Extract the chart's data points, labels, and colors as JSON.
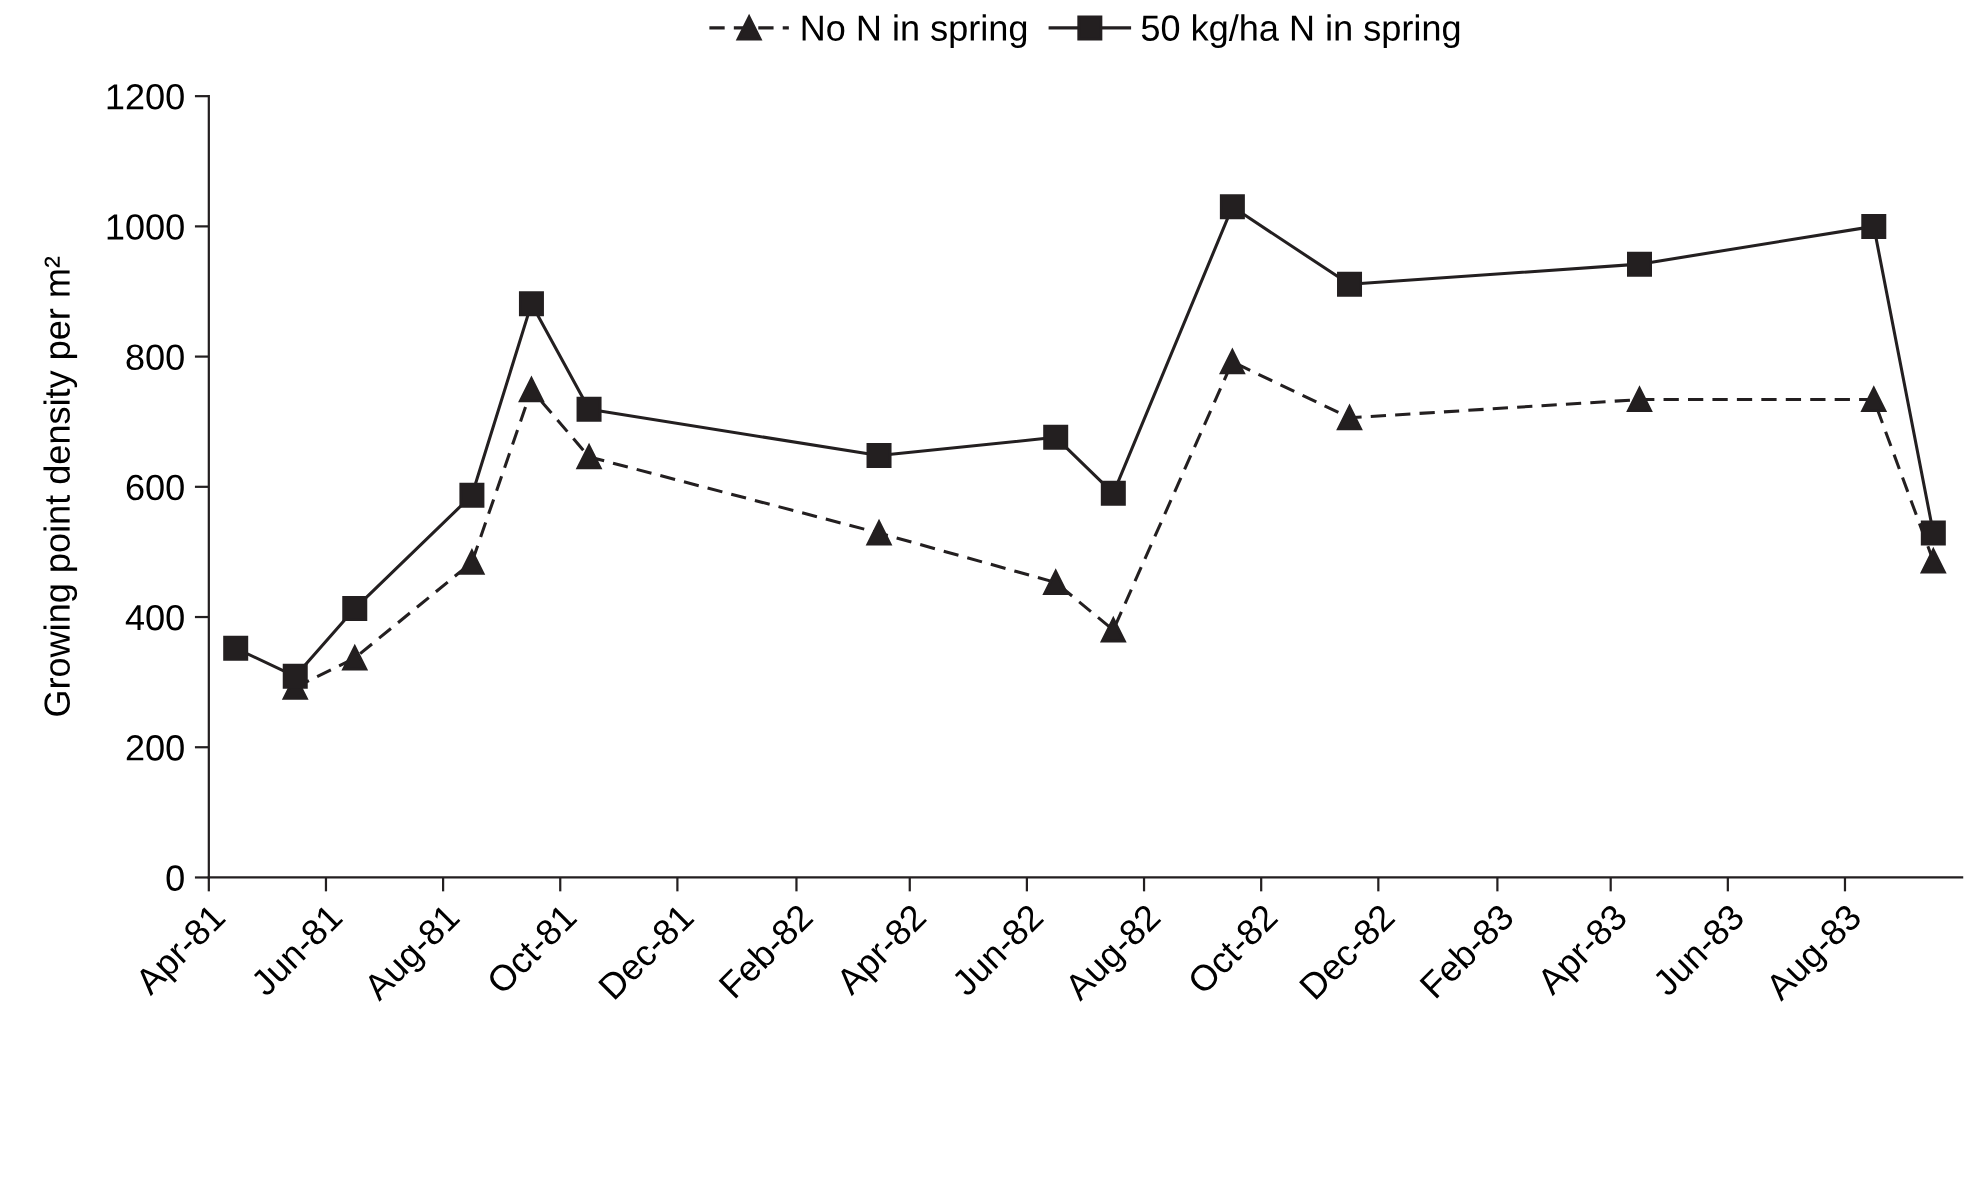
{
  "chart_data": {
    "type": "line",
    "ylabel": "Growing point density per m²",
    "x": [
      "1981-04-15",
      "1981-05-16",
      "1981-06-16",
      "1981-08-16",
      "1981-09-16",
      "1981-10-16",
      "1982-03-16",
      "1982-06-16",
      "1982-07-16",
      "1982-09-16",
      "1982-11-16",
      "1983-04-16",
      "1983-08-16",
      "1983-09-16"
    ],
    "series": [
      {
        "name": "No N in spring",
        "color": "#231f20",
        "marker": "triangle",
        "line_style": "dashed",
        "values": [
          null,
          292,
          337,
          484,
          749,
          646,
          529,
          453,
          380,
          792,
          706,
          734,
          734,
          486
        ]
      },
      {
        "name": "50 kg/ha N in spring",
        "color": "#231f20",
        "marker": "square",
        "line_style": "solid",
        "values": [
          352,
          309,
          413,
          587,
          881,
          719,
          648,
          676,
          590,
          1030,
          911,
          942,
          1000,
          529
        ]
      }
    ],
    "xlim": [
      "1981-04-01",
      "1983-10-01"
    ],
    "xticks": [
      {
        "value": "1981-04-01",
        "label": "Apr-81"
      },
      {
        "value": "1981-06-01",
        "label": "Jun-81"
      },
      {
        "value": "1981-08-01",
        "label": "Aug-81"
      },
      {
        "value": "1981-10-01",
        "label": "Oct-81"
      },
      {
        "value": "1981-12-01",
        "label": "Dec-81"
      },
      {
        "value": "1982-02-01",
        "label": "Feb-82"
      },
      {
        "value": "1982-04-01",
        "label": "Apr-82"
      },
      {
        "value": "1982-06-01",
        "label": "Jun-82"
      },
      {
        "value": "1982-08-01",
        "label": "Aug-82"
      },
      {
        "value": "1982-10-01",
        "label": "Oct-82"
      },
      {
        "value": "1982-12-01",
        "label": "Dec-82"
      },
      {
        "value": "1983-02-01",
        "label": "Feb-83"
      },
      {
        "value": "1983-04-01",
        "label": "Apr-83"
      },
      {
        "value": "1983-06-01",
        "label": "Jun-83"
      },
      {
        "value": "1983-08-01",
        "label": "Aug-83"
      }
    ],
    "ylim": [
      0,
      1200
    ],
    "yticks": [
      0,
      200,
      400,
      600,
      800,
      1000,
      1200
    ],
    "grid": false,
    "legend": "top"
  }
}
